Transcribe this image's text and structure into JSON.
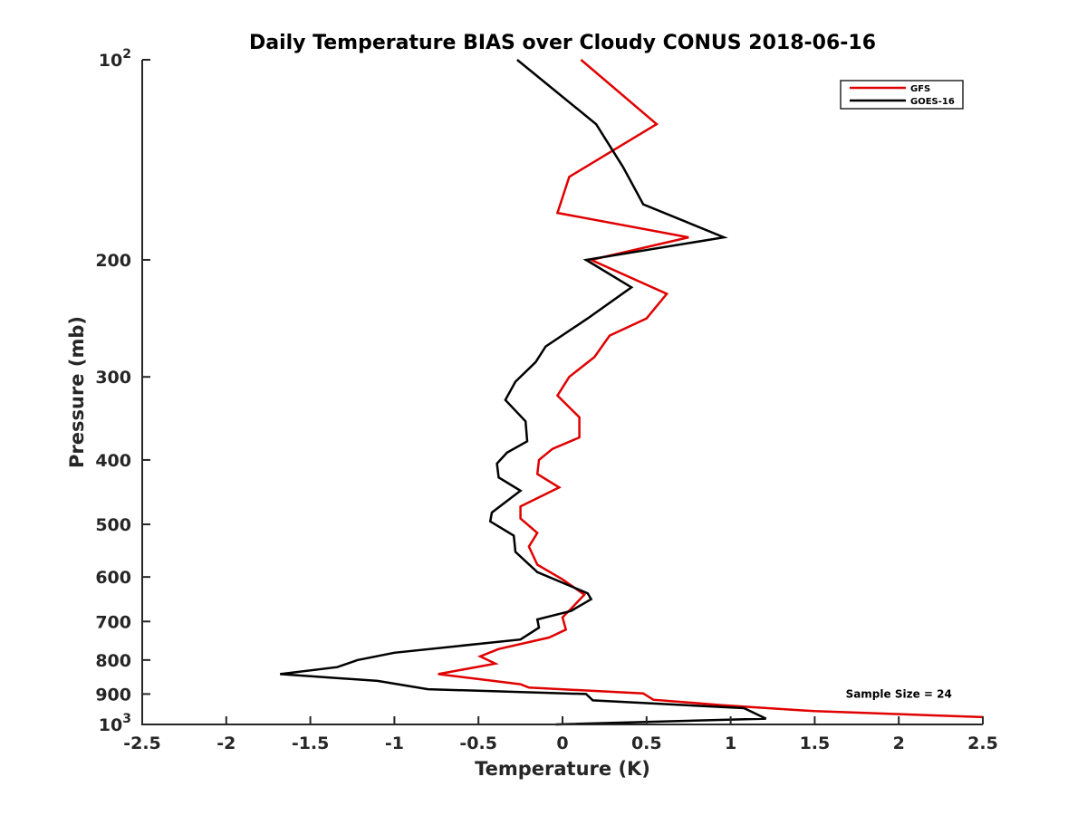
{
  "chart_data": {
    "type": "line",
    "title": "Daily Temperature BIAS over Cloudy CONUS 2018-06-16",
    "xlabel": "Temperature (K)",
    "ylabel": "Pressure (mb)",
    "xlim": [
      -2.5,
      2.5
    ],
    "ylim": [
      100,
      1000
    ],
    "y_scale": "log",
    "y_reversed": true,
    "grid": false,
    "legend_position": "top-right",
    "x_ticks": [
      {
        "value": -2.5,
        "label": "-2.5"
      },
      {
        "value": -2,
        "label": "-2"
      },
      {
        "value": -1.5,
        "label": "-1.5"
      },
      {
        "value": -1,
        "label": "-1"
      },
      {
        "value": -0.5,
        "label": "-0.5"
      },
      {
        "value": 0,
        "label": "0"
      },
      {
        "value": 0.5,
        "label": "0.5"
      },
      {
        "value": 1,
        "label": "1"
      },
      {
        "value": 1.5,
        "label": "1.5"
      },
      {
        "value": 2,
        "label": "2"
      },
      {
        "value": 2.5,
        "label": "2.5"
      }
    ],
    "y_ticks": [
      {
        "value": 100,
        "base": "10",
        "exp": "2"
      },
      {
        "value": 200,
        "label": "200"
      },
      {
        "value": 300,
        "label": "300"
      },
      {
        "value": 400,
        "label": "400"
      },
      {
        "value": 500,
        "label": "500"
      },
      {
        "value": 600,
        "label": "600"
      },
      {
        "value": 700,
        "label": "700"
      },
      {
        "value": 800,
        "label": "800"
      },
      {
        "value": 900,
        "label": "900"
      },
      {
        "value": 1000,
        "base": "10",
        "exp": "3"
      }
    ],
    "series": [
      {
        "name": "GFS",
        "color": "#e00000",
        "points": [
          [
            0.11,
            100
          ],
          [
            0.56,
            125
          ],
          [
            0.04,
            150
          ],
          [
            -0.03,
            170
          ],
          [
            0.75,
            185
          ],
          [
            0.17,
            200
          ],
          [
            0.62,
            225
          ],
          [
            0.5,
            245
          ],
          [
            0.28,
            260
          ],
          [
            0.19,
            280
          ],
          [
            0.04,
            300
          ],
          [
            -0.03,
            320
          ],
          [
            0.1,
            345
          ],
          [
            0.1,
            370
          ],
          [
            -0.06,
            385
          ],
          [
            -0.14,
            400
          ],
          [
            -0.15,
            420
          ],
          [
            -0.02,
            440
          ],
          [
            -0.25,
            470
          ],
          [
            -0.25,
            490
          ],
          [
            -0.15,
            515
          ],
          [
            -0.2,
            540
          ],
          [
            -0.15,
            575
          ],
          [
            0.0,
            605
          ],
          [
            0.13,
            638
          ],
          [
            0.05,
            670
          ],
          [
            0.0,
            690
          ],
          [
            0.02,
            720
          ],
          [
            -0.08,
            740
          ],
          [
            -0.38,
            770
          ],
          [
            -0.49,
            790
          ],
          [
            -0.4,
            810
          ],
          [
            -0.74,
            840
          ],
          [
            -0.25,
            870
          ],
          [
            -0.2,
            880
          ],
          [
            0.48,
            898
          ],
          [
            0.54,
            918
          ],
          [
            0.94,
            935
          ],
          [
            1.5,
            955
          ],
          [
            2.5,
            975
          ]
        ]
      },
      {
        "name": "GOES-16",
        "color": "#000000",
        "points": [
          [
            -0.27,
            100
          ],
          [
            0.2,
            125
          ],
          [
            0.36,
            145
          ],
          [
            0.48,
            165
          ],
          [
            0.96,
            185
          ],
          [
            0.14,
            200
          ],
          [
            0.41,
            220
          ],
          [
            0.15,
            245
          ],
          [
            -0.1,
            270
          ],
          [
            -0.16,
            285
          ],
          [
            -0.28,
            305
          ],
          [
            -0.34,
            325
          ],
          [
            -0.22,
            350
          ],
          [
            -0.21,
            375
          ],
          [
            -0.33,
            390
          ],
          [
            -0.39,
            405
          ],
          [
            -0.38,
            425
          ],
          [
            -0.25,
            445
          ],
          [
            -0.42,
            480
          ],
          [
            -0.43,
            495
          ],
          [
            -0.29,
            520
          ],
          [
            -0.28,
            550
          ],
          [
            -0.15,
            590
          ],
          [
            0.15,
            635
          ],
          [
            0.17,
            648
          ],
          [
            0.05,
            675
          ],
          [
            -0.15,
            695
          ],
          [
            -0.14,
            715
          ],
          [
            -0.25,
            745
          ],
          [
            -1.0,
            780
          ],
          [
            -1.22,
            800
          ],
          [
            -1.34,
            820
          ],
          [
            -1.68,
            840
          ],
          [
            -1.1,
            860
          ],
          [
            -0.8,
            885
          ],
          [
            0.14,
            900
          ],
          [
            0.18,
            920
          ],
          [
            1.08,
            945
          ],
          [
            1.21,
            980
          ],
          [
            -0.04,
            1000
          ]
        ]
      }
    ],
    "annotations": [
      {
        "text": "Sample Size = 24",
        "x": 2.0,
        "y": 900
      }
    ]
  }
}
